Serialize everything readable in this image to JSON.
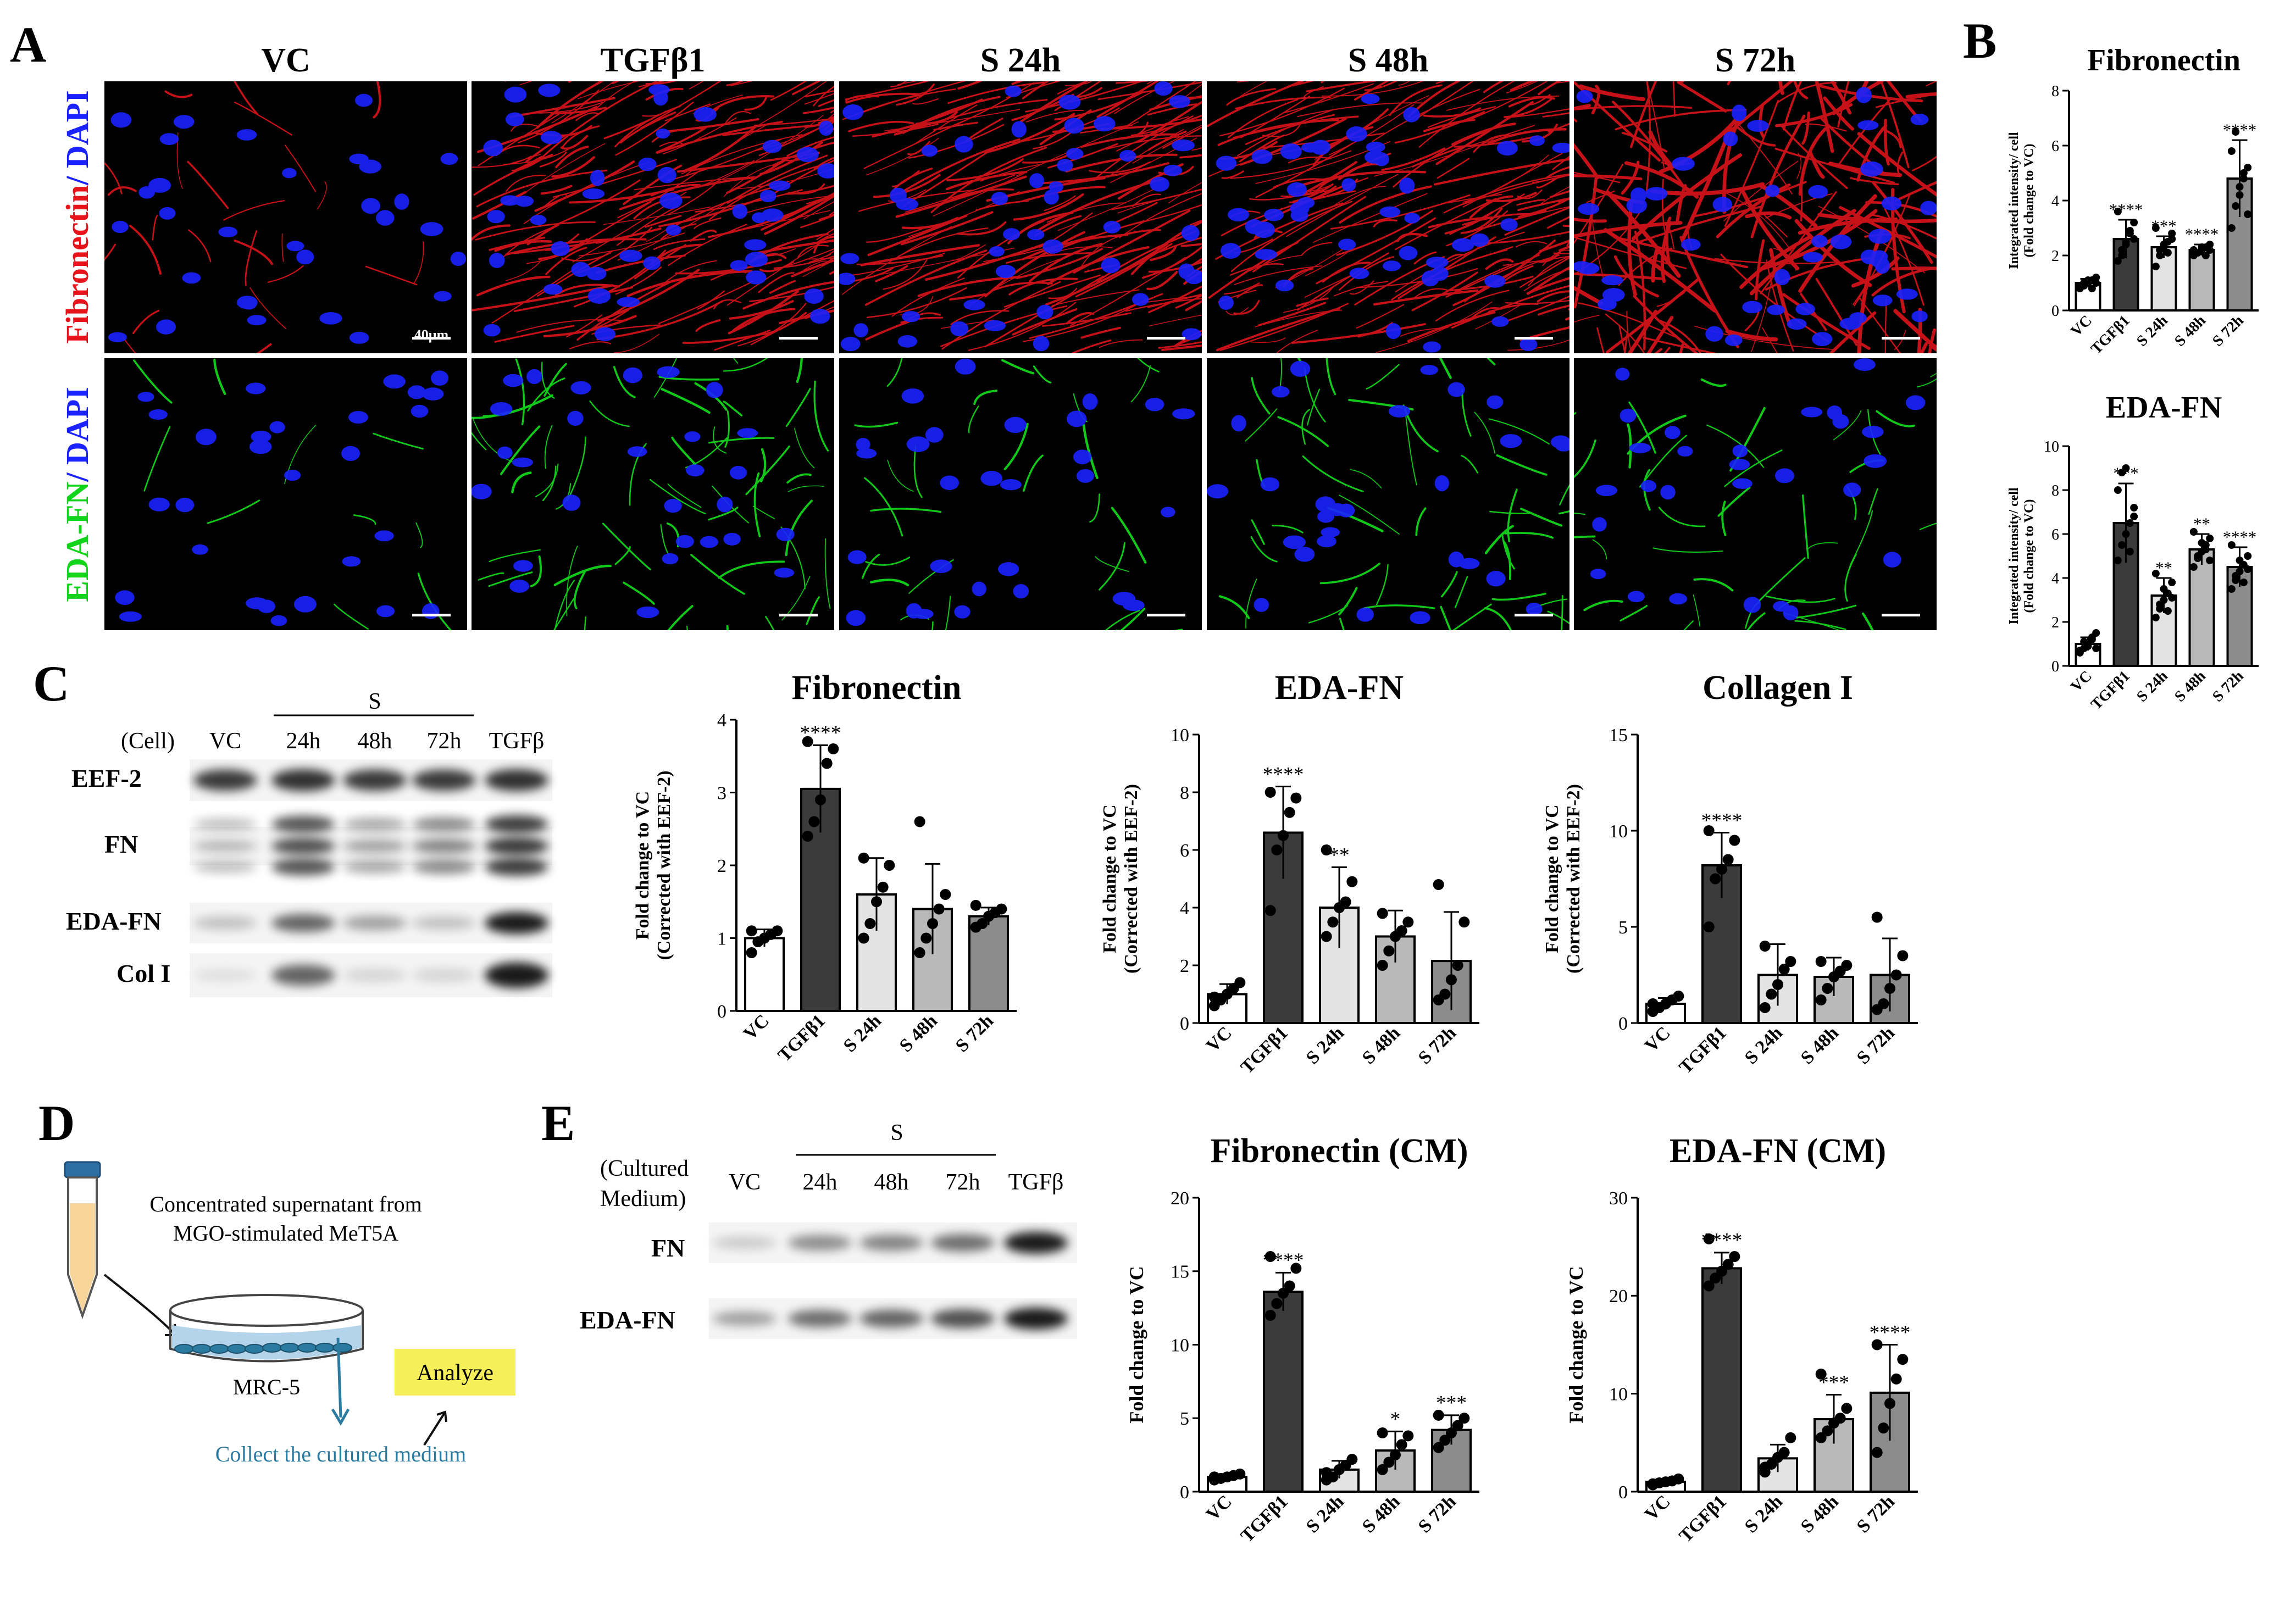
{
  "panelA": {
    "letter": "A",
    "columns": [
      "VC",
      "TGFβ1",
      "S 24h",
      "S 48h",
      "S 72h"
    ],
    "row1_label": {
      "part1": "Fibronectin",
      "part2": "/ DAPI"
    },
    "row2_label": {
      "part1": "EDA-FN",
      "part2": "/ DAPI"
    },
    "scale_bar": "40μm",
    "colors": {
      "fibronectin": "#e8141c",
      "eda_fn": "#12d41a",
      "dapi": "#1a22ff",
      "background": "#000000"
    }
  },
  "panelB": {
    "letter": "B"
  },
  "panelC": {
    "letter": "C",
    "blot": {
      "group_label": "S",
      "cell_label": "(Cell)",
      "lanes": [
        "VC",
        "24h",
        "48h",
        "72h",
        "TGFβ"
      ],
      "rows": [
        "EEF-2",
        "FN",
        "EDA-FN",
        "Col I"
      ]
    }
  },
  "panelD": {
    "letter": "D",
    "supernatant_line1": "Concentrated supernatant from",
    "supernatant_line2": "MGO-stimulated MeT5A",
    "cell_label": "MRC-5",
    "collect_label": "Collect the cultured medium",
    "analyze_label": "Analyze",
    "colors": {
      "medium": "#b3d4ea",
      "tube_fill": "#f7d49a",
      "cap": "#2e6fa3",
      "analyze_box": "#f5f05a",
      "collect_text": "#2b7aa0"
    }
  },
  "panelE": {
    "letter": "E",
    "blot": {
      "group_label": "S",
      "medium_label1": "(Cultured",
      "medium_label2": "Medium)",
      "lanes": [
        "VC",
        "24h",
        "48h",
        "72h",
        "TGFβ"
      ],
      "rows": [
        "FN",
        "EDA-FN"
      ]
    }
  },
  "chart_data": [
    {
      "id": "B-fibronectin",
      "type": "bar",
      "title": "Fibronectin",
      "ylabel": [
        "Integrated intensity/ cell",
        "(Fold change to VC)"
      ],
      "categories": [
        "VC",
        "TGFβ1",
        "S 24h",
        "S 48h",
        "S 72h"
      ],
      "values": [
        1.0,
        2.6,
        2.3,
        2.2,
        4.8
      ],
      "errors": [
        0.15,
        0.7,
        0.4,
        0.2,
        1.4
      ],
      "sig": [
        "",
        "****",
        "***",
        "****",
        "****"
      ],
      "ylim": [
        0,
        8
      ],
      "yticks": [
        0,
        2,
        4,
        6,
        8
      ],
      "points": [
        [
          0.8,
          0.9,
          1.0,
          1.1,
          1.2,
          0.9,
          1.0,
          1.1,
          0.8,
          1.0
        ],
        [
          1.8,
          2.2,
          2.5,
          2.8,
          3.2,
          3.6,
          2.0,
          2.4,
          2.9,
          2.6
        ],
        [
          1.6,
          2.0,
          2.3,
          2.5,
          2.8,
          3.0,
          2.2,
          2.4,
          2.1,
          2.6
        ],
        [
          2.0,
          2.1,
          2.2,
          2.3,
          2.4,
          2.2,
          2.1,
          2.3,
          2.0,
          2.2
        ],
        [
          3.0,
          3.8,
          4.2,
          4.8,
          5.2,
          5.8,
          6.5,
          4.5,
          5.0,
          3.5
        ]
      ]
    },
    {
      "id": "B-edafn",
      "type": "bar",
      "title": "EDA-FN",
      "ylabel": [
        "Integrated intensity/ cell",
        "(Fold change to VC)"
      ],
      "categories": [
        "VC",
        "TGFβ1",
        "S 24h",
        "S 48h",
        "S 72h"
      ],
      "values": [
        1.0,
        6.5,
        3.2,
        5.3,
        4.5
      ],
      "errors": [
        0.3,
        1.8,
        0.8,
        0.7,
        0.9
      ],
      "sig": [
        "",
        "***",
        "**",
        "**",
        "****"
      ],
      "ylim": [
        0,
        10
      ],
      "yticks": [
        0,
        2,
        4,
        6,
        8,
        10
      ],
      "points": [
        [
          0.6,
          0.8,
          1.0,
          1.2,
          1.5,
          0.7,
          1.1,
          0.9,
          1.3,
          0.8
        ],
        [
          4.8,
          5.5,
          6.0,
          6.5,
          7.2,
          8.0,
          8.8,
          9.0,
          5.2,
          6.8
        ],
        [
          2.2,
          2.6,
          3.0,
          3.3,
          3.8,
          4.2,
          2.8,
          3.5,
          2.5,
          3.1
        ],
        [
          4.5,
          4.9,
          5.2,
          5.5,
          5.8,
          6.1,
          5.0,
          5.6,
          5.3,
          4.8
        ],
        [
          3.5,
          3.9,
          4.3,
          4.6,
          5.0,
          5.5,
          4.1,
          4.8,
          3.8,
          4.4
        ]
      ]
    },
    {
      "id": "C-fibronectin",
      "type": "bar",
      "title": "Fibronectin",
      "ylabel": [
        "Fold change to VC",
        "(Corrected with EEF-2)"
      ],
      "categories": [
        "VC",
        "TGFβ1",
        "S 24h",
        "S 48h",
        "S 72h"
      ],
      "values": [
        1.0,
        3.05,
        1.6,
        1.4,
        1.3
      ],
      "errors": [
        0.12,
        0.6,
        0.5,
        0.62,
        0.12
      ],
      "sig": [
        "",
        "****",
        "",
        "",
        ""
      ],
      "ylim": [
        0,
        4
      ],
      "yticks": [
        0,
        1,
        2,
        3,
        4
      ],
      "points": [
        [
          0.8,
          0.95,
          1.0,
          1.05,
          1.1,
          1.1
        ],
        [
          2.4,
          2.6,
          2.9,
          3.4,
          3.6,
          3.7
        ],
        [
          1.0,
          1.2,
          1.5,
          1.7,
          2.0,
          2.1
        ],
        [
          0.8,
          1.0,
          1.2,
          1.4,
          1.6,
          2.6
        ],
        [
          1.15,
          1.2,
          1.3,
          1.35,
          1.4,
          1.45
        ]
      ]
    },
    {
      "id": "C-edafn",
      "type": "bar",
      "title": "EDA-FN",
      "ylabel": [
        "Fold change to VC",
        "(Corrected with EEF-2)"
      ],
      "categories": [
        "VC",
        "TGFβ1",
        "S 24h",
        "S 48h",
        "S 72h"
      ],
      "values": [
        1.0,
        6.6,
        4.0,
        3.0,
        2.15
      ],
      "errors": [
        0.35,
        1.6,
        1.4,
        0.9,
        1.7
      ],
      "sig": [
        "",
        "****",
        "**",
        "",
        ""
      ],
      "ylim": [
        0,
        10
      ],
      "yticks": [
        0,
        2,
        4,
        6,
        8,
        10
      ],
      "points": [
        [
          0.6,
          0.8,
          1.0,
          1.2,
          1.4,
          0.9
        ],
        [
          3.9,
          6.0,
          6.5,
          7.3,
          7.8,
          8.0
        ],
        [
          3.0,
          3.5,
          4.0,
          4.2,
          4.9,
          6.0
        ],
        [
          2.0,
          2.5,
          3.0,
          3.2,
          3.5,
          3.8
        ],
        [
          0.8,
          1.0,
          1.5,
          2.0,
          3.5,
          4.8
        ]
      ]
    },
    {
      "id": "C-collagen",
      "type": "bar",
      "title": "Collagen I",
      "ylabel": [
        "Fold change to VC",
        "(Corrected with EEF-2)"
      ],
      "categories": [
        "VC",
        "TGFβ1",
        "S 24h",
        "S 48h",
        "S 72h"
      ],
      "values": [
        1.0,
        8.2,
        2.5,
        2.4,
        2.5
      ],
      "errors": [
        0.3,
        1.7,
        1.6,
        1.0,
        1.9
      ],
      "sig": [
        "",
        "****",
        "",
        "",
        ""
      ],
      "ylim": [
        0,
        15
      ],
      "yticks": [
        0,
        5,
        10,
        15
      ],
      "points": [
        [
          0.6,
          0.8,
          1.0,
          1.2,
          1.4,
          1.0
        ],
        [
          5.0,
          7.5,
          8.0,
          8.5,
          9.5,
          10.0
        ],
        [
          0.8,
          1.5,
          2.0,
          2.8,
          3.2,
          4.0
        ],
        [
          1.2,
          1.8,
          2.4,
          2.7,
          3.0,
          3.2
        ],
        [
          0.7,
          1.0,
          1.8,
          2.5,
          3.5,
          5.5
        ]
      ]
    },
    {
      "id": "E-fibronectin",
      "type": "bar",
      "title": "Fibronectin (CM)",
      "ylabel": [
        "Fold change to VC"
      ],
      "categories": [
        "VC",
        "TGFβ1",
        "S 24h",
        "S 48h",
        "S 72h"
      ],
      "values": [
        1.0,
        13.6,
        1.5,
        2.8,
        4.2
      ],
      "errors": [
        0.2,
        1.3,
        0.6,
        1.3,
        1.0
      ],
      "sig": [
        "",
        "****",
        "",
        "*",
        "***"
      ],
      "ylim": [
        0,
        20
      ],
      "yticks": [
        0,
        5,
        10,
        15,
        20
      ],
      "points": [
        [
          0.8,
          0.9,
          1.0,
          1.1,
          1.2,
          1.0
        ],
        [
          12.0,
          12.8,
          13.5,
          14.0,
          15.2,
          16.0
        ],
        [
          0.8,
          1.0,
          1.5,
          1.8,
          2.2,
          1.3
        ],
        [
          1.5,
          2.0,
          2.5,
          3.2,
          3.8,
          4.0
        ],
        [
          3.0,
          3.5,
          4.0,
          4.5,
          5.0,
          5.2
        ]
      ]
    },
    {
      "id": "E-edafn",
      "type": "bar",
      "title": "EDA-FN (CM)",
      "ylabel": [
        "Fold change to VC"
      ],
      "categories": [
        "VC",
        "TGFβ1",
        "S 24h",
        "S 48h",
        "S 72h"
      ],
      "values": [
        1.0,
        22.8,
        3.4,
        7.4,
        10.1
      ],
      "errors": [
        0.3,
        1.6,
        1.4,
        2.5,
        4.9
      ],
      "sig": [
        "",
        "****",
        "",
        "***",
        "****"
      ],
      "ylim": [
        0,
        30
      ],
      "yticks": [
        0,
        10,
        20,
        30
      ],
      "points": [
        [
          0.7,
          0.9,
          1.0,
          1.1,
          1.3,
          0.8
        ],
        [
          21.0,
          21.8,
          22.5,
          23.2,
          24.0,
          25.8
        ],
        [
          2.0,
          2.8,
          3.5,
          4.0,
          5.5,
          2.5
        ],
        [
          5.5,
          6.2,
          7.0,
          7.5,
          8.5,
          12.0
        ],
        [
          4.0,
          6.5,
          9.0,
          11.5,
          13.5,
          15.0
        ]
      ]
    }
  ]
}
